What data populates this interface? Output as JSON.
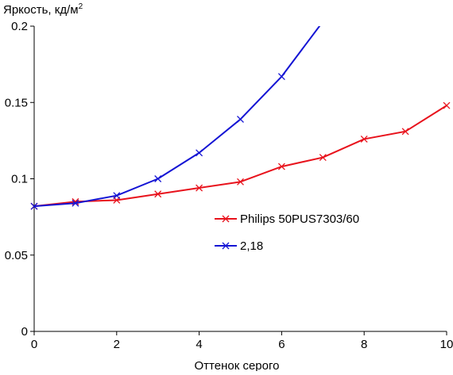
{
  "chart_data": {
    "type": "line",
    "ylabel": "Яркость, кд/м",
    "ylabel_superscript": "2",
    "xlabel": "Оттенок серого",
    "xlim": [
      0,
      10
    ],
    "ylim": [
      0,
      0.2
    ],
    "x_ticks": [
      0,
      2,
      4,
      6,
      8,
      10
    ],
    "x_tick_labels": [
      "0",
      "2",
      "4",
      "6",
      "8",
      "10"
    ],
    "y_ticks": [
      0,
      0.05,
      0.1,
      0.15,
      0.2
    ],
    "y_tick_labels": [
      "0",
      "0.05",
      "0.1",
      "0.15",
      "0.2"
    ],
    "grid": false,
    "legend_position": "center-right",
    "series": [
      {
        "name": "Philips 50PUS7303/60",
        "color": "#e8121c",
        "marker": "x",
        "x": [
          0,
          1,
          2,
          3,
          4,
          5,
          6,
          7,
          8,
          9,
          10
        ],
        "y": [
          0.082,
          0.085,
          0.086,
          0.09,
          0.094,
          0.098,
          0.108,
          0.114,
          0.126,
          0.131,
          0.148
        ]
      },
      {
        "name": "2,18",
        "color": "#1414d4",
        "marker": "x",
        "x": [
          0,
          1,
          2,
          3,
          4,
          5,
          6,
          7
        ],
        "y": [
          0.082,
          0.084,
          0.089,
          0.1,
          0.117,
          0.139,
          0.167,
          0.203
        ]
      }
    ]
  }
}
